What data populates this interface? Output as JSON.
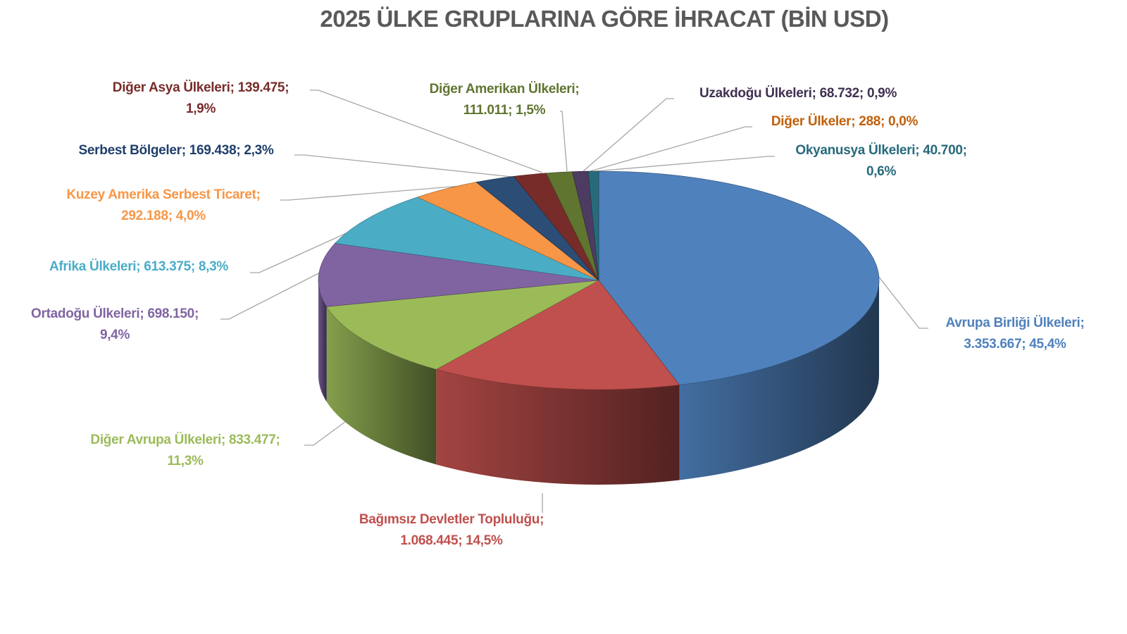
{
  "chart_data": {
    "type": "pie",
    "style": "3d",
    "title": "2025 ÜLKE GRUPLARINA GÖRE İHRACAT (BİN USD)",
    "legend": "none",
    "slices": [
      {
        "name": "Avrupa Birliği Ülkeleri",
        "value": "3.353.667",
        "percent": "45,4%",
        "share": 45.4,
        "color": "#4f81bd",
        "label_color": "#4f81bd"
      },
      {
        "name": "Bağımsız Devletler Topluluğu",
        "value": "1.068.445",
        "percent": "14,5%",
        "share": 14.5,
        "color": "#c0504d",
        "label_color": "#c0504d"
      },
      {
        "name": "Diğer Avrupa Ülkeleri",
        "value": "833.477",
        "percent": "11,3%",
        "share": 11.3,
        "color": "#9bbb59",
        "label_color": "#9bbb59"
      },
      {
        "name": "Ortadoğu Ülkeleri",
        "value": "698.150",
        "percent": "9,4%",
        "share": 9.4,
        "color": "#8064a2",
        "label_color": "#8064a2"
      },
      {
        "name": "Afrika Ülkeleri",
        "value": "613.375",
        "percent": "8,3%",
        "share": 8.3,
        "color": "#4bacc6",
        "label_color": "#4bacc6"
      },
      {
        "name": "Kuzey Amerika Serbest Ticaret",
        "value": "292.188",
        "percent": "4,0%",
        "share": 4.0,
        "color": "#f79646",
        "label_color": "#f79646"
      },
      {
        "name": "Serbest Bölgeler",
        "value": "169.438",
        "percent": "2,3%",
        "share": 2.3,
        "color": "#2c4d75",
        "label_color": "#1f3f6b"
      },
      {
        "name": "Diğer Asya Ülkeleri",
        "value": "139.475",
        "percent": "1,9%",
        "share": 1.9,
        "color": "#772c2a",
        "label_color": "#772c2a"
      },
      {
        "name": "Diğer Amerikan Ülkeleri",
        "value": "111.011",
        "percent": "1,5%",
        "share": 1.5,
        "color": "#5f7530",
        "label_color": "#5f7530"
      },
      {
        "name": "Uzakdoğu Ülkeleri",
        "value": "68.732",
        "percent": "0,9%",
        "share": 0.9,
        "color": "#4d3b62",
        "label_color": "#403152"
      },
      {
        "name": "Diğer Ülkeler",
        "value": "288",
        "percent": "0,0%",
        "share": 0.004,
        "color": "#b65708",
        "label_color": "#c0600a"
      },
      {
        "name": "Okyanusya Ülkeleri",
        "value": "40.700",
        "percent": "0,6%",
        "share": 0.6,
        "color": "#276a7c",
        "label_color": "#276a7c"
      }
    ]
  }
}
